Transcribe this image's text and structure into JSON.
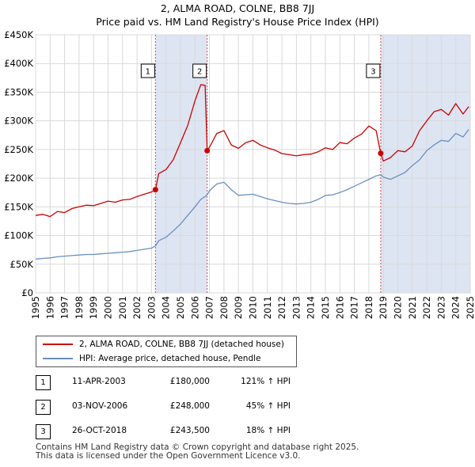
{
  "title_line1": "2, ALMA ROAD, COLNE, BB8 7JJ",
  "title_line2": "Price paid vs. HM Land Registry's House Price Index (HPI)",
  "colors": {
    "property": "#cc0000",
    "hpi": "#6a8fc0",
    "marker_line": "#cc0000",
    "band": "#dde5f3"
  },
  "chart_data": {
    "type": "line",
    "title": "2, ALMA ROAD, COLNE, BB8 7JJ — Price paid vs. HM Land Registry's House Price Index (HPI)",
    "xlabel": "",
    "ylabel": "",
    "xlim": [
      1995,
      2025
    ],
    "ylim": [
      0,
      450000
    ],
    "grid": true,
    "x_ticks": [
      "1995",
      "1996",
      "1997",
      "1998",
      "1999",
      "2000",
      "2001",
      "2002",
      "2003",
      "2004",
      "2005",
      "2006",
      "2007",
      "2008",
      "2009",
      "2010",
      "2011",
      "2012",
      "2013",
      "2014",
      "2015",
      "2016",
      "2017",
      "2018",
      "2019",
      "2020",
      "2021",
      "2022",
      "2023",
      "2024",
      "2025"
    ],
    "y_ticks": [
      {
        "value": 0,
        "label": "£0"
      },
      {
        "value": 50000,
        "label": "£50K"
      },
      {
        "value": 100000,
        "label": "£100K"
      },
      {
        "value": 150000,
        "label": "£150K"
      },
      {
        "value": 200000,
        "label": "£200K"
      },
      {
        "value": 250000,
        "label": "£250K"
      },
      {
        "value": 300000,
        "label": "£300K"
      },
      {
        "value": 350000,
        "label": "£350K"
      },
      {
        "value": 400000,
        "label": "£400K"
      },
      {
        "value": 450000,
        "label": "£450K"
      }
    ],
    "series": [
      {
        "name": "2, ALMA ROAD, COLNE, BB8 7JJ (detached house)",
        "color": "#cc0000",
        "x": [
          1995.0,
          1995.5,
          1996.0,
          1996.5,
          1997.0,
          1997.5,
          1998.0,
          1998.5,
          1999.0,
          1999.5,
          2000.0,
          2000.5,
          2001.0,
          2001.5,
          2002.0,
          2002.5,
          2003.0,
          2003.27,
          2003.5,
          2004.0,
          2004.5,
          2005.0,
          2005.5,
          2006.0,
          2006.4,
          2006.7,
          2006.84,
          2007.0,
          2007.5,
          2008.0,
          2008.5,
          2009.0,
          2009.5,
          2010.0,
          2010.5,
          2011.0,
          2011.5,
          2012.0,
          2012.5,
          2013.0,
          2013.5,
          2014.0,
          2014.5,
          2015.0,
          2015.5,
          2016.0,
          2016.5,
          2017.0,
          2017.5,
          2018.0,
          2018.5,
          2018.82,
          2019.0,
          2019.5,
          2020.0,
          2020.5,
          2021.0,
          2021.5,
          2022.0,
          2022.5,
          2023.0,
          2023.5,
          2024.0,
          2024.5,
          2024.9
        ],
        "values": [
          135000,
          137000,
          133000,
          142000,
          140000,
          147000,
          150000,
          153000,
          152000,
          156000,
          160000,
          158000,
          162000,
          163000,
          168000,
          172000,
          176000,
          180000,
          208000,
          215000,
          232000,
          262000,
          292000,
          335000,
          363000,
          362000,
          248000,
          254000,
          278000,
          283000,
          258000,
          252000,
          262000,
          266000,
          258000,
          253000,
          249000,
          243000,
          241000,
          239000,
          241000,
          242000,
          246000,
          253000,
          250000,
          262000,
          260000,
          270000,
          277000,
          291000,
          283000,
          243500,
          230000,
          236000,
          248000,
          246000,
          256000,
          283000,
          300000,
          316000,
          320000,
          310000,
          330000,
          312000,
          325000
        ]
      },
      {
        "name": "HPI: Average price, detached house, Pendle",
        "color": "#6a8fc0",
        "x": [
          1995.0,
          1995.5,
          1996.0,
          1996.5,
          1997.0,
          1997.5,
          1998.0,
          1998.5,
          1999.0,
          1999.5,
          2000.0,
          2000.5,
          2001.0,
          2001.5,
          2002.0,
          2002.5,
          2003.0,
          2003.27,
          2003.5,
          2004.0,
          2004.5,
          2005.0,
          2005.5,
          2006.0,
          2006.4,
          2006.7,
          2006.84,
          2007.0,
          2007.5,
          2008.0,
          2008.5,
          2009.0,
          2009.5,
          2010.0,
          2010.5,
          2011.0,
          2011.5,
          2012.0,
          2012.5,
          2013.0,
          2013.5,
          2014.0,
          2014.5,
          2015.0,
          2015.5,
          2016.0,
          2016.5,
          2017.0,
          2017.5,
          2018.0,
          2018.5,
          2018.82,
          2019.0,
          2019.5,
          2020.0,
          2020.5,
          2021.0,
          2021.5,
          2022.0,
          2022.5,
          2023.0,
          2023.5,
          2024.0,
          2024.5,
          2024.9
        ],
        "values": [
          59000,
          60000,
          61000,
          63000,
          64000,
          65000,
          66000,
          67000,
          67000,
          68000,
          69000,
          70000,
          71000,
          72000,
          74000,
          76000,
          78000,
          82000,
          91000,
          97000,
          108000,
          120000,
          135000,
          150000,
          163000,
          168000,
          171000,
          178000,
          190000,
          193000,
          180000,
          170000,
          171000,
          172000,
          168000,
          164000,
          161000,
          158000,
          156000,
          155000,
          156000,
          158000,
          163000,
          170000,
          171000,
          175000,
          180000,
          186000,
          192000,
          198000,
          204000,
          206000,
          202000,
          198000,
          204000,
          210000,
          222000,
          232000,
          248000,
          258000,
          266000,
          264000,
          278000,
          272000,
          285000
        ]
      }
    ],
    "sale_markers": [
      {
        "label": "1",
        "x": 2003.27,
        "value": 180000
      },
      {
        "label": "2",
        "x": 2006.84,
        "value": 248000
      },
      {
        "label": "3",
        "x": 2018.82,
        "value": 243500
      }
    ]
  },
  "legend": {
    "property_label": "2, ALMA ROAD, COLNE, BB8 7JJ (detached house)",
    "hpi_label": "HPI: Average price, detached house, Pendle"
  },
  "sales": [
    {
      "num": "1",
      "date": "11-APR-2003",
      "price": "£180,000",
      "hpi": "121% ↑ HPI"
    },
    {
      "num": "2",
      "date": "03-NOV-2006",
      "price": "£248,000",
      "hpi": "45% ↑ HPI"
    },
    {
      "num": "3",
      "date": "26-OCT-2018",
      "price": "£243,500",
      "hpi": "18% ↑ HPI"
    }
  ],
  "footer_line1": "Contains HM Land Registry data © Crown copyright and database right 2025.",
  "footer_line2": "This data is licensed under the Open Government Licence v3.0."
}
